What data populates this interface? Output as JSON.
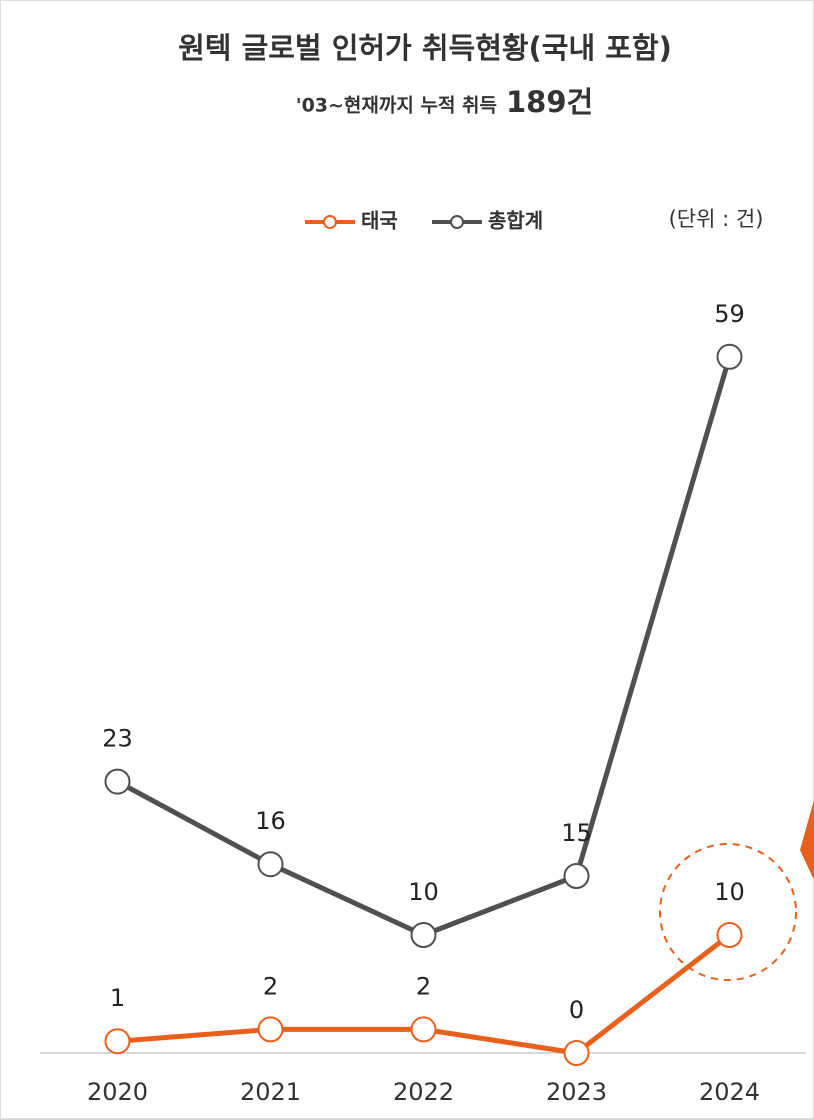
{
  "chart_data": {
    "type": "line",
    "title": "원텍 글로벌 인허가 취득현황(국내 포함)",
    "subtitle": "'03~현재까지 누적 취득",
    "subtitle_highlight": "189건",
    "unit_label": "(단위 : 건)",
    "categories": [
      "2020",
      "2021",
      "2022",
      "2023",
      "2024"
    ],
    "series": [
      {
        "name": "태국",
        "color": "#e8601c",
        "values": [
          1,
          2,
          2,
          0,
          10
        ]
      },
      {
        "name": "총합계",
        "color": "#505050",
        "values": [
          23,
          16,
          10,
          15,
          59
        ]
      }
    ],
    "ylim": [
      0,
      70
    ]
  }
}
